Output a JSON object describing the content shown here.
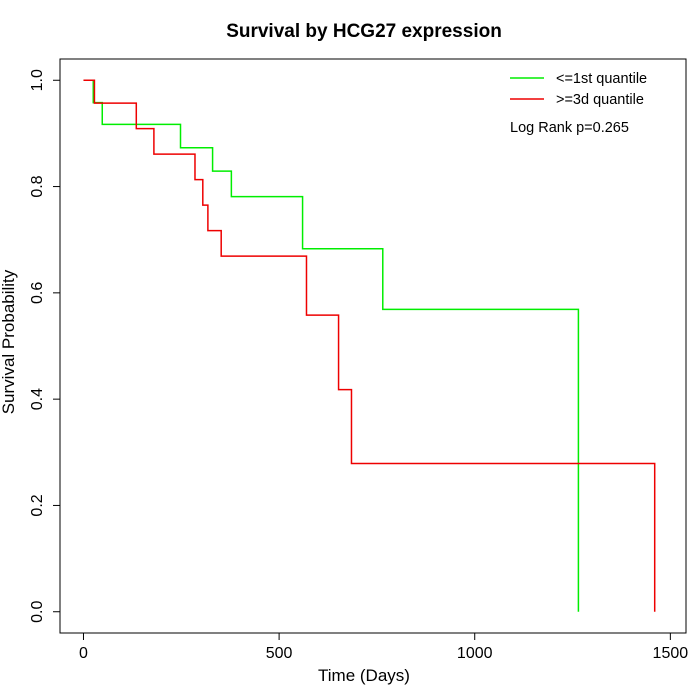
{
  "chart_data": {
    "type": "line",
    "title": "Survival by HCG27 expression",
    "xlabel": "Time (Days)",
    "ylabel": "Survival Probability",
    "xlim": [
      -60,
      1540
    ],
    "ylim": [
      -0.04,
      1.04
    ],
    "xticks": [
      0,
      500,
      1000,
      1500
    ],
    "yticks": [
      0.0,
      0.2,
      0.4,
      0.6,
      0.8,
      1.0
    ],
    "xtick_labels": [
      "0",
      "500",
      "1000",
      "1500"
    ],
    "ytick_labels": [
      "0.0",
      "0.2",
      "0.4",
      "0.6",
      "0.8",
      "1.0"
    ],
    "grid": false,
    "legend_position": "top-right",
    "annotation": "Log Rank p=0.265",
    "series": [
      {
        "name": "<=1st quantile",
        "color": "#00ee00",
        "step": true,
        "x": [
          0,
          25,
          48,
          248,
          330,
          378,
          560,
          765,
          1265,
          1265
        ],
        "y": [
          1.0,
          0.958,
          0.917,
          0.873,
          0.829,
          0.781,
          0.683,
          0.569,
          0.569,
          0.0
        ]
      },
      {
        "name": ">=3d quantile",
        "color": "#ee0000",
        "step": true,
        "x": [
          0,
          28,
          135,
          180,
          285,
          305,
          318,
          352,
          570,
          652,
          685,
          1460,
          1460
        ],
        "y": [
          1.0,
          0.957,
          0.909,
          0.861,
          0.813,
          0.765,
          0.717,
          0.669,
          0.558,
          0.418,
          0.279,
          0.279,
          0.0
        ]
      }
    ]
  }
}
